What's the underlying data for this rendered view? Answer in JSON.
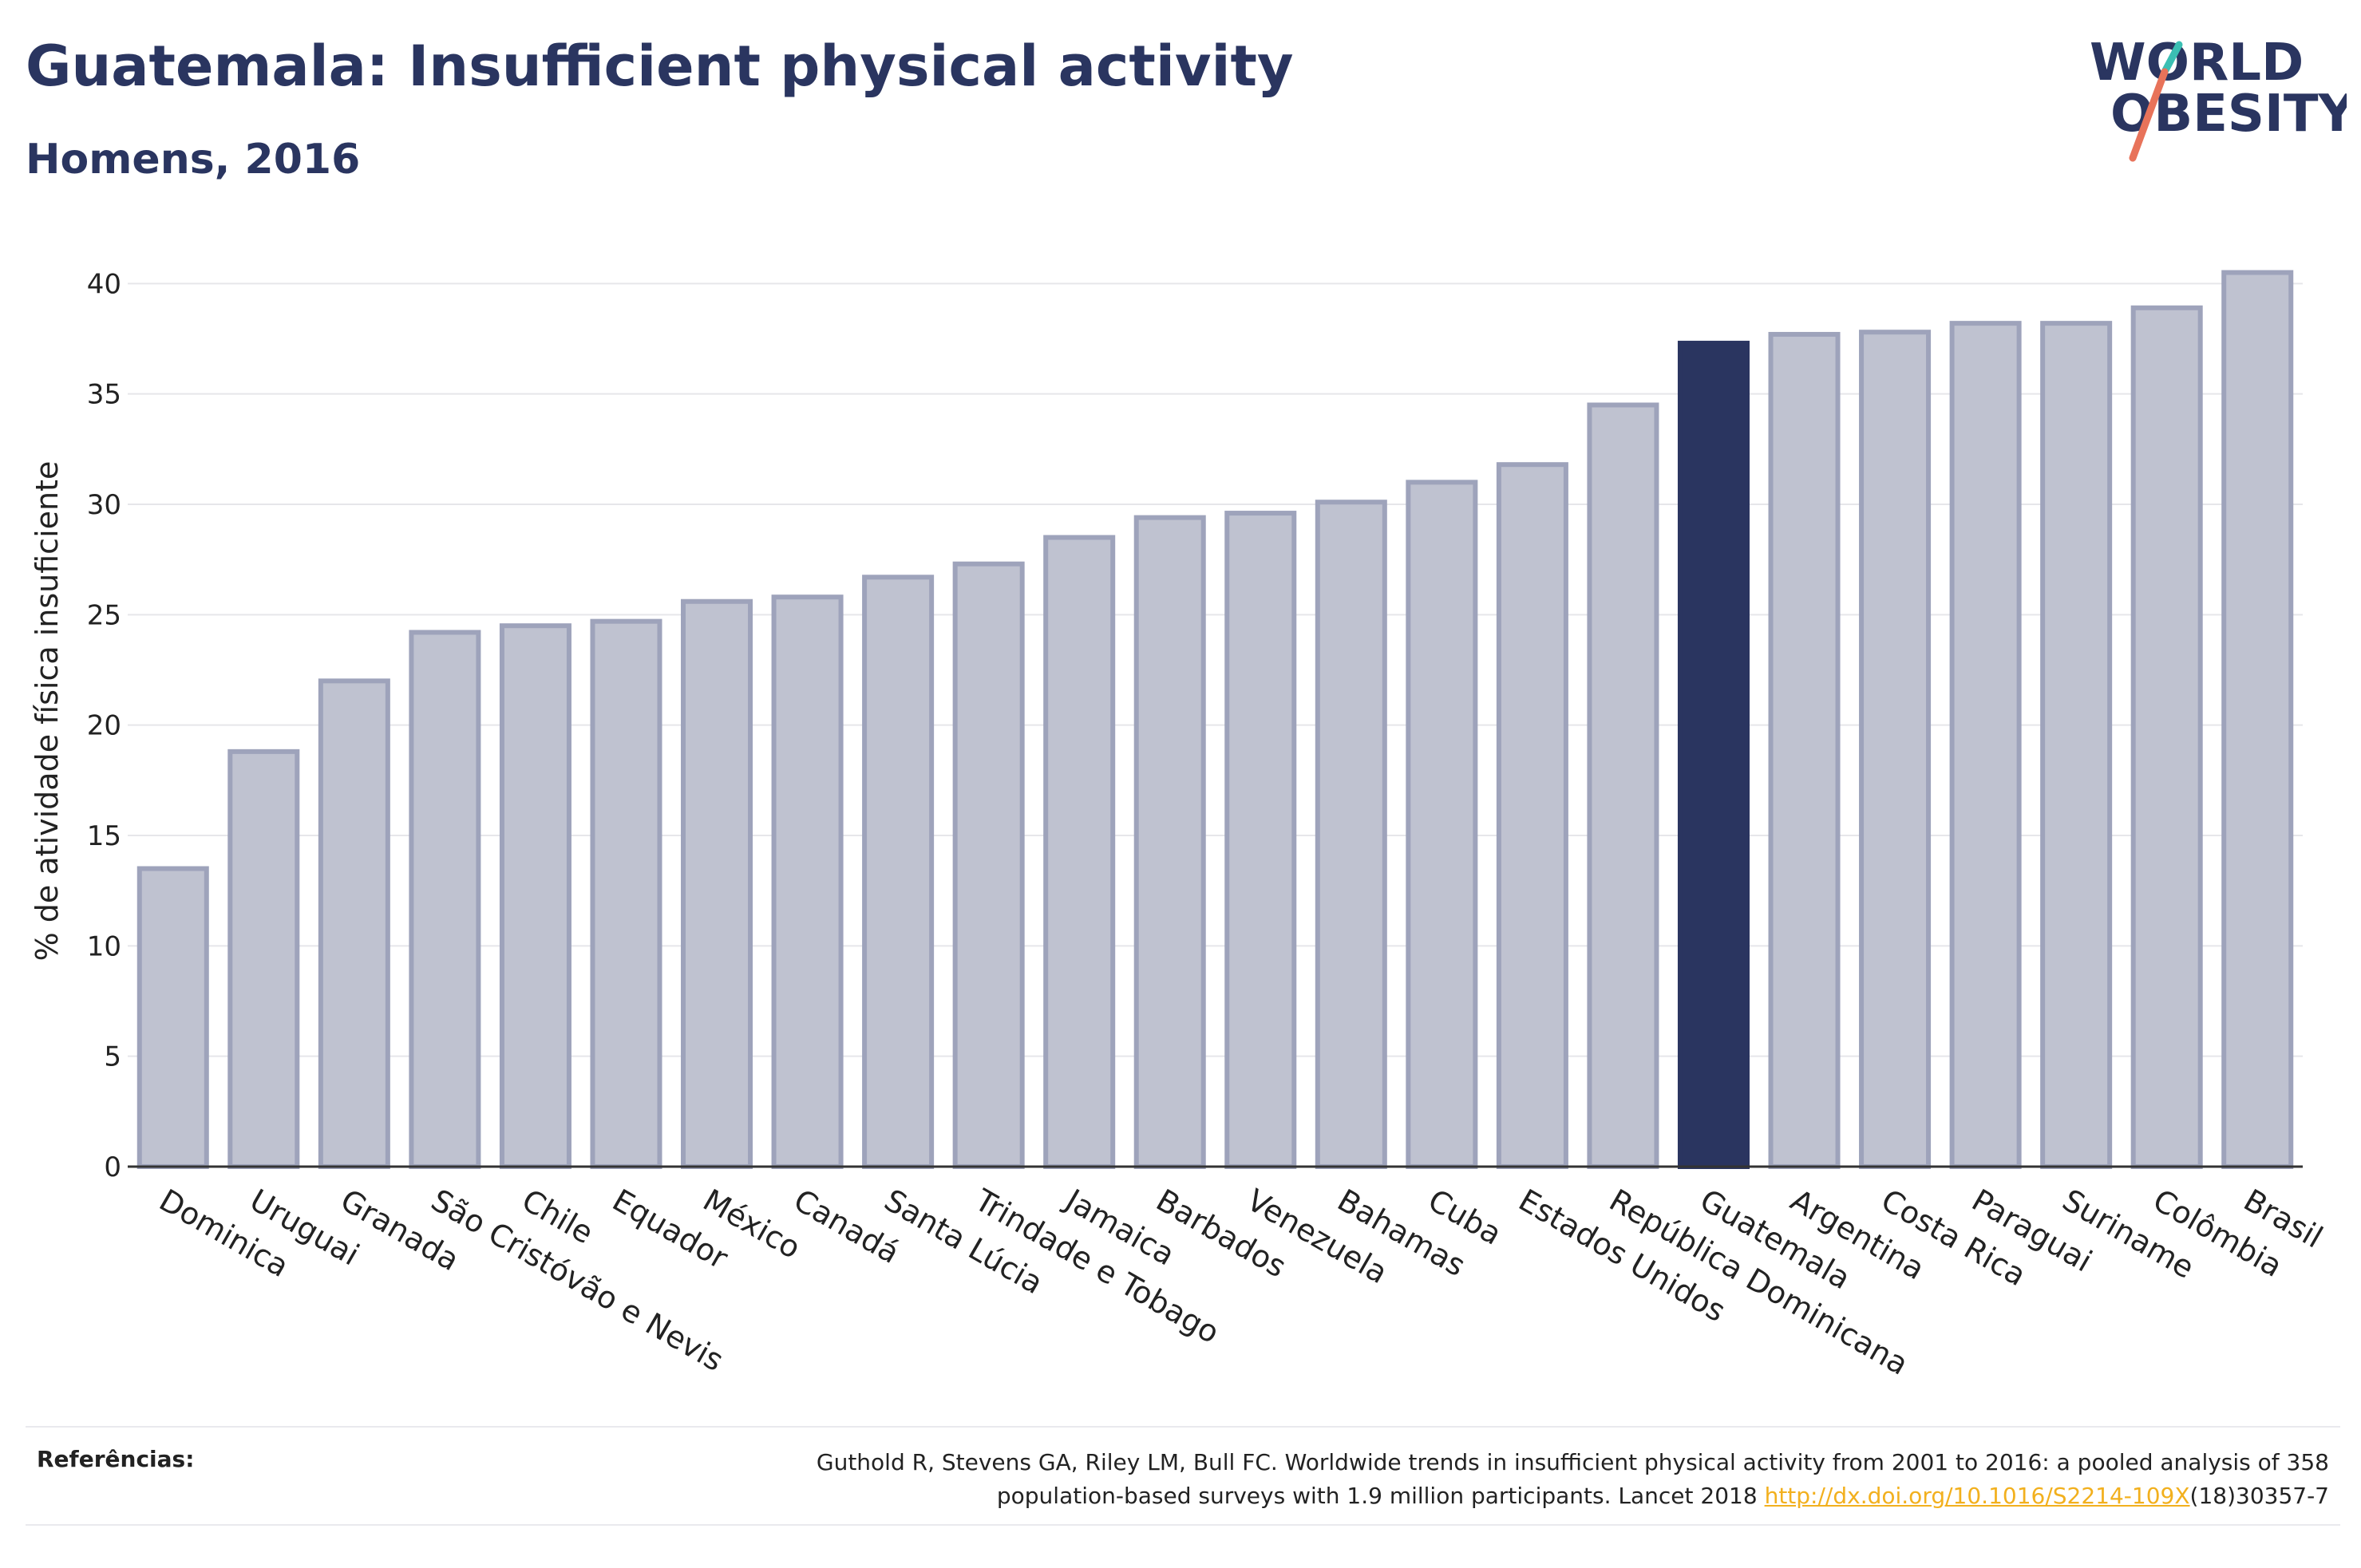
{
  "header": {
    "title": "Guatemala: Insufficient physical activity",
    "subtitle": "Homens, 2016"
  },
  "logo": {
    "line1": "WORLD",
    "line2": "OBESITY",
    "text_color": "#2a3560",
    "slash_color_top": "#3bbfb3",
    "slash_color_bottom": "#e8735a"
  },
  "chart_data": {
    "type": "bar",
    "ylabel": "% de atividade física insuficiente",
    "xlabel": "",
    "ylim": [
      0,
      42
    ],
    "yticks": [
      0,
      5,
      10,
      15,
      20,
      25,
      30,
      35,
      40
    ],
    "grid": true,
    "categories": [
      "Dominica",
      "Uruguai",
      "Granada",
      "São Cristóvão e Nevis",
      "Chile",
      "Equador",
      "México",
      "Canadá",
      "Santa Lúcia",
      "Trindade e Tobago",
      "Jamaica",
      "Barbados",
      "Venezuela",
      "Bahamas",
      "Cuba",
      "Estados Unidos",
      "República Dominicana",
      "Guatemala",
      "Argentina",
      "Costa Rica",
      "Paraguai",
      "Suriname",
      "Colômbia",
      "Brasil"
    ],
    "values": [
      13.5,
      18.8,
      22.0,
      24.2,
      24.5,
      24.7,
      25.6,
      25.8,
      26.7,
      27.3,
      28.5,
      29.4,
      29.6,
      30.1,
      31.0,
      31.8,
      34.5,
      37.3,
      37.7,
      37.8,
      38.2,
      38.2,
      38.9,
      40.5
    ],
    "highlight": "Guatemala",
    "colors": {
      "bar_fill": "#bfc2d0",
      "bar_stroke": "#9ea3bb",
      "highlight": "#2a3560",
      "grid": "#e6e6ea"
    }
  },
  "footer": {
    "ref_label": "Referências:",
    "ref_line1": "Guthold R, Stevens GA, Riley LM, Bull FC. Worldwide trends in insufficient physical activity from 2001 to 2016: a pooled analysis of 358",
    "ref_line2_pre": "population-based surveys with 1.9 million participants. Lancet 2018 ",
    "ref_link": "http://dx.doi.org/10.1016/S2214-109X",
    "ref_line2_post": "(18)30357-7"
  }
}
